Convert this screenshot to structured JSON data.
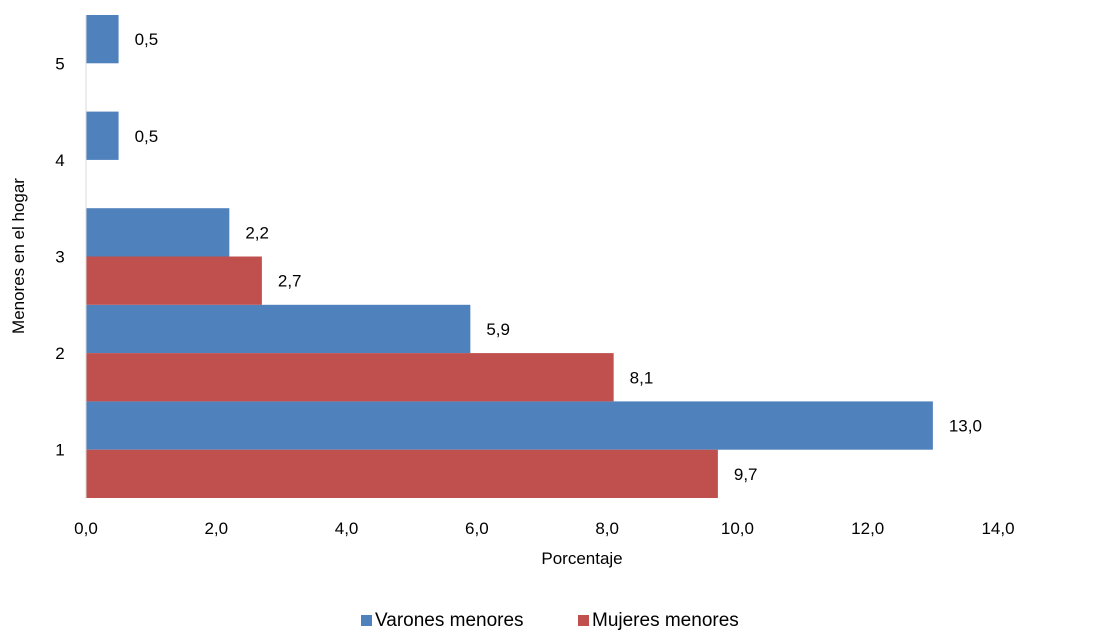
{
  "chart_data": {
    "type": "bar",
    "orientation": "horizontal",
    "categories": [
      "1",
      "2",
      "3",
      "4",
      "5"
    ],
    "series": [
      {
        "name": "Varones menores",
        "color": "#4F81BD",
        "values": [
          13.0,
          5.9,
          2.2,
          0.5,
          0.5
        ],
        "labels": [
          "13,0",
          "5,9",
          "2,2",
          "0,5",
          "0,5"
        ]
      },
      {
        "name": "Mujeres menores",
        "color": "#C0504D",
        "values": [
          9.7,
          8.1,
          2.7,
          null,
          null
        ],
        "labels": [
          "9,7",
          "8,1",
          "2,7",
          "",
          ""
        ]
      }
    ],
    "xlabel": "Porcentaje",
    "ylabel": "Menores en el hogar",
    "xlim": [
      0,
      14
    ],
    "xticks": [
      0,
      2,
      4,
      6,
      8,
      10,
      12,
      14
    ],
    "xtick_labels": [
      "0,0",
      "2,0",
      "4,0",
      "6,0",
      "8,0",
      "10,0",
      "12,0",
      "14,0"
    ],
    "grid": false,
    "legend_position": "bottom"
  }
}
